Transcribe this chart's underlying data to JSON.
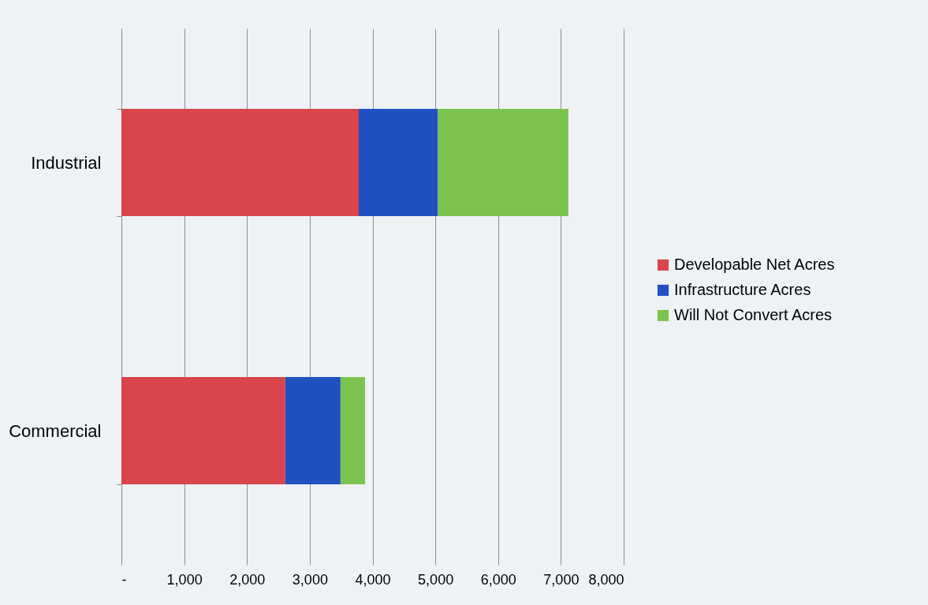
{
  "chart_data": {
    "type": "bar",
    "orientation": "horizontal",
    "stacked": true,
    "categories": [
      "Industrial",
      "Commercial"
    ],
    "series": [
      {
        "name": "Developable Net Acres",
        "color": "#d9454a",
        "values": [
          3780,
          2610
        ]
      },
      {
        "name": "Infrastructure Acres",
        "color": "#2150c0",
        "values": [
          1260,
          880
        ]
      },
      {
        "name": "Will Not Convert Acres",
        "color": "#7cc34f",
        "values": [
          2080,
          390
        ]
      }
    ],
    "xlim": [
      0,
      8000
    ],
    "xticks": [
      {
        "value": 0,
        "label": "-"
      },
      {
        "value": 1000,
        "label": "1,000"
      },
      {
        "value": 2000,
        "label": "2,000"
      },
      {
        "value": 3000,
        "label": "3,000"
      },
      {
        "value": 4000,
        "label": "4,000"
      },
      {
        "value": 5000,
        "label": "5,000"
      },
      {
        "value": 6000,
        "label": "6,000"
      },
      {
        "value": 7000,
        "label": "7,000"
      },
      {
        "value": 8000,
        "label": "8,000"
      }
    ],
    "grid": "x",
    "legend": "right"
  }
}
